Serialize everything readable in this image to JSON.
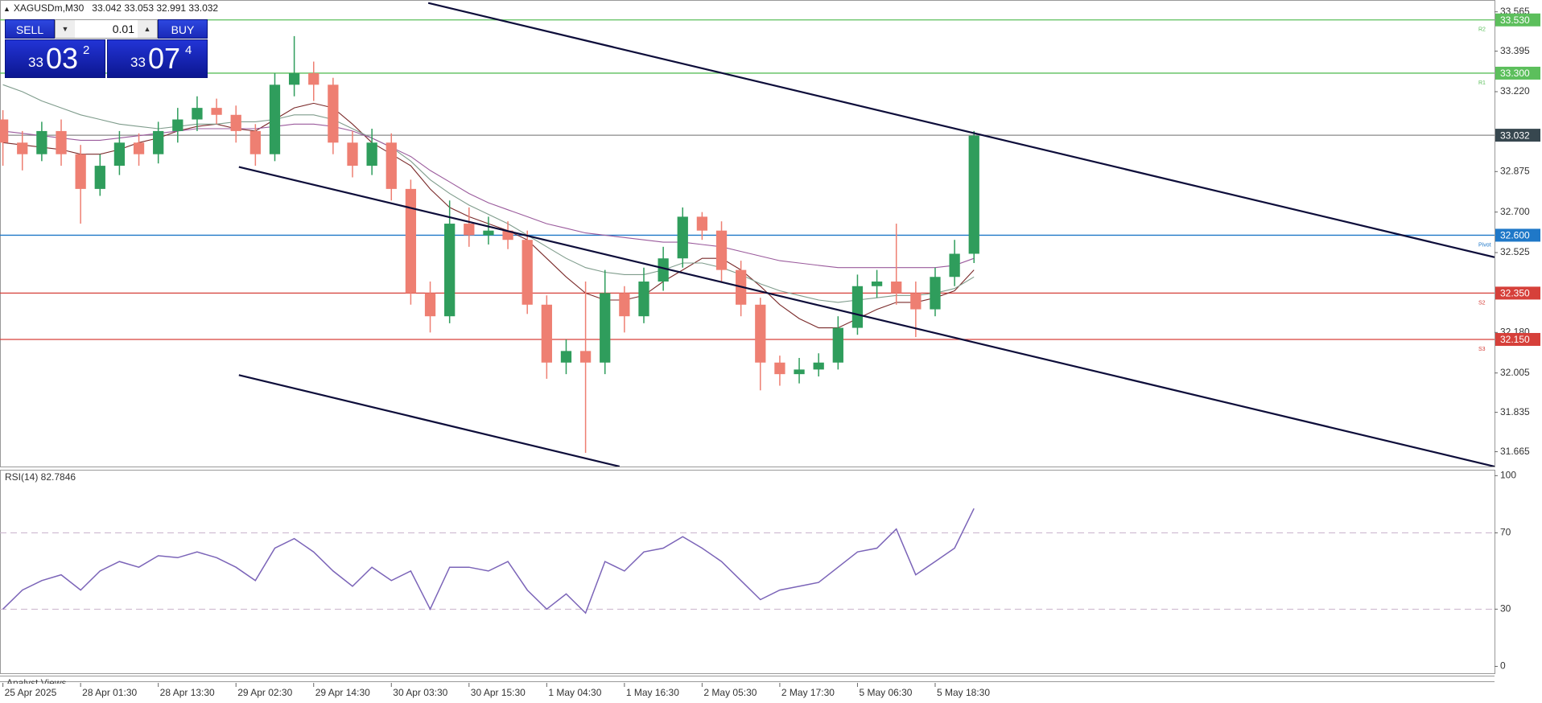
{
  "header": {
    "symbol": "XAGUSDm,M30",
    "quote": "33.042 33.053 32.991 33.032"
  },
  "trade_panel": {
    "sell": "SELL",
    "buy": "BUY",
    "volume": "0.01",
    "bid": {
      "big": "33",
      "main": "03",
      "small": "2"
    },
    "ask": {
      "big": "33",
      "main": "07",
      "small": "4"
    }
  },
  "analyst_views": "Analyst Views",
  "chart_data": [
    {
      "type": "candlestick",
      "up_color": "#2f9d5c",
      "down_color": "#ee7f72",
      "open": [
        33.1,
        33.0,
        32.95,
        33.05,
        32.95,
        32.8,
        32.9,
        33.0,
        32.95,
        33.05,
        33.1,
        33.15,
        33.12,
        33.05,
        32.95,
        33.25,
        33.3,
        33.25,
        33.0,
        32.9,
        33.0,
        32.8,
        32.35,
        32.25,
        32.65,
        32.6,
        32.62,
        32.58,
        32.3,
        32.05,
        32.1,
        32.05,
        32.35,
        32.25,
        32.4,
        32.5,
        32.68,
        32.62,
        32.45,
        32.3,
        32.05,
        32.0,
        32.02,
        32.05,
        32.2,
        32.38,
        32.4,
        32.35,
        32.28,
        32.42,
        32.52
      ],
      "high": [
        33.14,
        33.05,
        33.09,
        33.1,
        32.99,
        32.95,
        33.05,
        33.04,
        33.09,
        33.15,
        33.2,
        33.19,
        33.16,
        33.08,
        33.3,
        33.46,
        33.35,
        33.28,
        33.05,
        33.06,
        33.04,
        32.84,
        32.4,
        32.75,
        32.72,
        32.68,
        32.66,
        32.62,
        32.34,
        32.15,
        32.4,
        32.45,
        32.38,
        32.46,
        32.55,
        32.72,
        32.7,
        32.66,
        32.49,
        32.33,
        32.08,
        32.07,
        32.09,
        32.25,
        32.43,
        32.45,
        32.65,
        32.4,
        32.46,
        32.58,
        33.05
      ],
      "low": [
        32.9,
        32.88,
        32.92,
        32.9,
        32.65,
        32.77,
        32.86,
        32.9,
        32.91,
        33.0,
        33.05,
        33.08,
        33.0,
        32.9,
        32.92,
        33.2,
        33.18,
        32.95,
        32.85,
        32.86,
        32.75,
        32.3,
        32.18,
        32.22,
        32.55,
        32.56,
        32.54,
        32.26,
        31.98,
        32.0,
        31.66,
        32.0,
        32.18,
        32.22,
        32.36,
        32.46,
        32.58,
        32.4,
        32.25,
        31.93,
        31.95,
        31.96,
        31.99,
        32.02,
        32.17,
        32.33,
        32.3,
        32.16,
        32.25,
        32.38,
        32.48
      ],
      "close": [
        33.0,
        32.95,
        33.05,
        32.95,
        32.8,
        32.9,
        33.0,
        32.95,
        33.05,
        33.1,
        33.15,
        33.12,
        33.05,
        32.95,
        33.25,
        33.3,
        33.25,
        33.0,
        32.9,
        33.0,
        32.8,
        32.35,
        32.25,
        32.65,
        32.6,
        32.62,
        32.58,
        32.3,
        32.05,
        32.1,
        32.05,
        32.35,
        32.25,
        32.4,
        32.5,
        32.68,
        32.62,
        32.45,
        32.3,
        32.05,
        32.0,
        32.02,
        32.05,
        32.2,
        32.38,
        32.4,
        32.35,
        32.28,
        32.42,
        32.52,
        33.03
      ],
      "series": [
        {
          "color": "#7a2a2a",
          "values": [
            33.0,
            32.99,
            32.98,
            32.97,
            32.95,
            32.95,
            32.97,
            33.0,
            33.02,
            33.05,
            33.07,
            33.08,
            33.06,
            33.05,
            33.1,
            33.15,
            33.17,
            33.15,
            33.08,
            33.0,
            32.95,
            32.9,
            32.8,
            32.72,
            32.68,
            32.65,
            32.62,
            32.58,
            32.5,
            32.42,
            32.35,
            32.32,
            32.32,
            32.34,
            32.4,
            32.45,
            32.5,
            32.5,
            32.45,
            32.38,
            32.3,
            32.24,
            32.2,
            32.2,
            32.24,
            32.28,
            32.31,
            32.31,
            32.33,
            32.36,
            32.45
          ]
        },
        {
          "color": "#7f9c8c",
          "values": [
            33.25,
            33.22,
            33.18,
            33.15,
            33.12,
            33.1,
            33.08,
            33.07,
            33.06,
            33.07,
            33.08,
            33.08,
            33.09,
            33.09,
            33.1,
            33.12,
            33.12,
            33.1,
            33.06,
            33.02,
            32.98,
            32.92,
            32.84,
            32.78,
            32.73,
            32.69,
            32.65,
            32.6,
            32.55,
            32.5,
            32.46,
            32.44,
            32.43,
            32.43,
            32.45,
            32.48,
            32.48,
            32.46,
            32.43,
            32.39,
            32.36,
            32.34,
            32.32,
            32.31,
            32.32,
            32.33,
            32.34,
            32.34,
            32.35,
            32.37,
            32.42
          ]
        },
        {
          "color": "#9a5a9c",
          "values": [
            33.05,
            33.04,
            33.03,
            33.02,
            33.01,
            33.01,
            33.02,
            33.03,
            33.04,
            33.05,
            33.06,
            33.06,
            33.06,
            33.06,
            33.07,
            33.08,
            33.08,
            33.07,
            33.05,
            33.02,
            32.98,
            32.94,
            32.88,
            32.83,
            32.78,
            32.74,
            32.71,
            32.68,
            32.65,
            32.63,
            32.61,
            32.6,
            32.59,
            32.58,
            32.57,
            32.57,
            32.56,
            32.55,
            32.53,
            32.51,
            32.49,
            32.48,
            32.47,
            32.46,
            32.46,
            32.46,
            32.46,
            32.46,
            32.46,
            32.47,
            32.5
          ]
        }
      ],
      "levels": [
        {
          "name": "R2",
          "value": 33.53,
          "label": "33.530",
          "color": "#5cbf5c"
        },
        {
          "name": "R1",
          "value": 33.3,
          "label": "33.300",
          "color": "#5cbf5c"
        },
        {
          "value": 33.032,
          "label": "33.032",
          "color": "#8a8a8a",
          "box_color": "#37474f"
        },
        {
          "name": "Pivot",
          "value": 32.6,
          "label": "32.600",
          "color": "#1f78c8"
        },
        {
          "name": "S2",
          "value": 32.35,
          "label": "32.350",
          "color": "#d6403a"
        },
        {
          "name": "S3",
          "value": 32.15,
          "label": "32.150",
          "color": "#d6403a"
        }
      ],
      "trendlines": [
        {
          "color": "#0d0d3a",
          "x": [
            21.9,
            76.8
          ],
          "y": [
            33.603,
            32.505
          ]
        },
        {
          "color": "#0d0d3a",
          "x": [
            12.15,
            76.8
          ],
          "y": [
            32.895,
            31.601
          ]
        },
        {
          "color": "#0d0d3a",
          "x": [
            12.15,
            31.75
          ],
          "y": [
            31.996,
            31.601
          ]
        }
      ],
      "xlim": [
        -0.15,
        76.8
      ],
      "ylim": [
        31.601,
        33.616
      ],
      "yticks": [
        33.565,
        33.395,
        {
          "value": 33.22,
          "label": "33.220"
        },
        32.875,
        {
          "value": 32.7,
          "label": "32.700"
        },
        32.525,
        {
          "value": 32.18,
          "label": "32.180"
        },
        32.005,
        31.835,
        31.665
      ]
    },
    {
      "type": "line",
      "title": "RSI(14) 82.7846",
      "series": [
        {
          "color": "#7b64b8",
          "values": [
            30,
            40,
            45,
            48,
            40,
            50,
            55,
            52,
            58,
            57,
            60,
            57,
            52,
            45,
            62,
            67,
            60,
            50,
            42,
            52,
            45,
            50,
            30,
            52,
            52,
            50,
            55,
            40,
            30,
            38,
            28,
            55,
            50,
            60,
            62,
            68,
            62,
            55,
            45,
            35,
            40,
            42,
            44,
            52,
            60,
            62,
            72,
            48,
            55,
            62,
            82.7846
          ]
        }
      ],
      "levels": [
        70,
        30
      ],
      "xlim": [
        -0.15,
        76.8
      ],
      "ylim": [
        -3.6,
        103.1
      ],
      "yticks": [
        100,
        70,
        30,
        0
      ],
      "xticks": [
        {
          "value": 0,
          "label": "25 Apr 2025"
        },
        {
          "value": 4,
          "label": "28 Apr 01:30"
        },
        {
          "value": 8,
          "label": "28 Apr 13:30"
        },
        {
          "value": 12,
          "label": "29 Apr 02:30"
        },
        {
          "value": 16,
          "label": "29 Apr 14:30"
        },
        {
          "value": 20,
          "label": "30 Apr 03:30"
        },
        {
          "value": 24,
          "label": "30 Apr 15:30"
        },
        {
          "value": 28,
          "label": "1 May 04:30"
        },
        {
          "value": 32,
          "label": "1 May 16:30"
        },
        {
          "value": 36,
          "label": "2 May 05:30"
        },
        {
          "value": 40,
          "label": "2 May 17:30"
        },
        {
          "value": 44,
          "label": "5 May 06:30"
        },
        {
          "value": 48,
          "label": "5 May 18:30"
        }
      ]
    }
  ]
}
